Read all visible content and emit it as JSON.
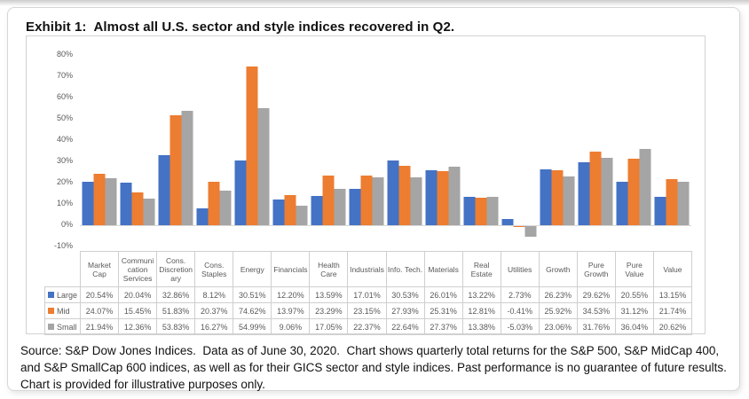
{
  "page": {
    "title": "Exhibit 1:  Almost all U.S. sector and style indices recovered in Q2.",
    "footnote": "Source: S&P Dow Jones Indices.  Data as of June 30, 2020.  Chart shows quarterly total returns for the S&P 500, S&P MidCap 400, and S&P SmallCap 600 indices, as well as for their GICS sector and style indices. Past performance is no guarantee of future results.  Chart is provided for illustrative purposes only."
  },
  "chart_data": {
    "type": "bar",
    "title": "",
    "categories": [
      "Market Cap",
      "Communication Services",
      "Cons. Discretionary",
      "Cons. Staples",
      "Energy",
      "Financials",
      "Health Care",
      "Industrials",
      "Info. Tech.",
      "Materials",
      "Real Estate",
      "Utilities",
      "Growth",
      "Pure Growth",
      "Pure Value",
      "Value"
    ],
    "category_display": [
      "Market\nCap",
      "Communi\ncation\nServices",
      "Cons.\nDiscretion\nary",
      "Cons.\nStaples",
      "Energy",
      "Financials",
      "Health\nCare",
      "Industrials",
      "Info. Tech.",
      "Materials",
      "Real\nEstate",
      "Utilities",
      "Growth",
      "Pure\nGrowth",
      "Pure\nValue",
      "Value"
    ],
    "series": [
      {
        "name": "Large",
        "color": "#4472C4",
        "values": [
          20.54,
          20.04,
          32.86,
          8.12,
          30.51,
          12.2,
          13.59,
          17.01,
          30.53,
          26.01,
          13.22,
          2.73,
          26.23,
          29.62,
          20.55,
          13.15
        ]
      },
      {
        "name": "Mid",
        "color": "#ED7D31",
        "values": [
          24.07,
          15.45,
          51.83,
          20.37,
          74.62,
          13.97,
          23.29,
          23.15,
          27.93,
          25.31,
          12.81,
          -0.41,
          25.92,
          34.53,
          31.12,
          21.74
        ]
      },
      {
        "name": "Small",
        "color": "#A5A5A5",
        "values": [
          21.94,
          12.36,
          53.83,
          16.27,
          54.99,
          9.06,
          17.05,
          22.37,
          22.64,
          27.37,
          13.38,
          -5.03,
          23.06,
          31.76,
          36.04,
          20.62
        ]
      }
    ],
    "ylim": [
      -10,
      80
    ],
    "ytick_step": 10,
    "ytick_labels": [
      "80%",
      "70%",
      "60%",
      "50%",
      "40%",
      "30%",
      "20%",
      "10%",
      "0%",
      "-10%"
    ],
    "value_format": "0.00%",
    "grid": false,
    "legend_position": "table-left-column",
    "axis_color": "#d9d9d9",
    "label_color": "#595959"
  }
}
